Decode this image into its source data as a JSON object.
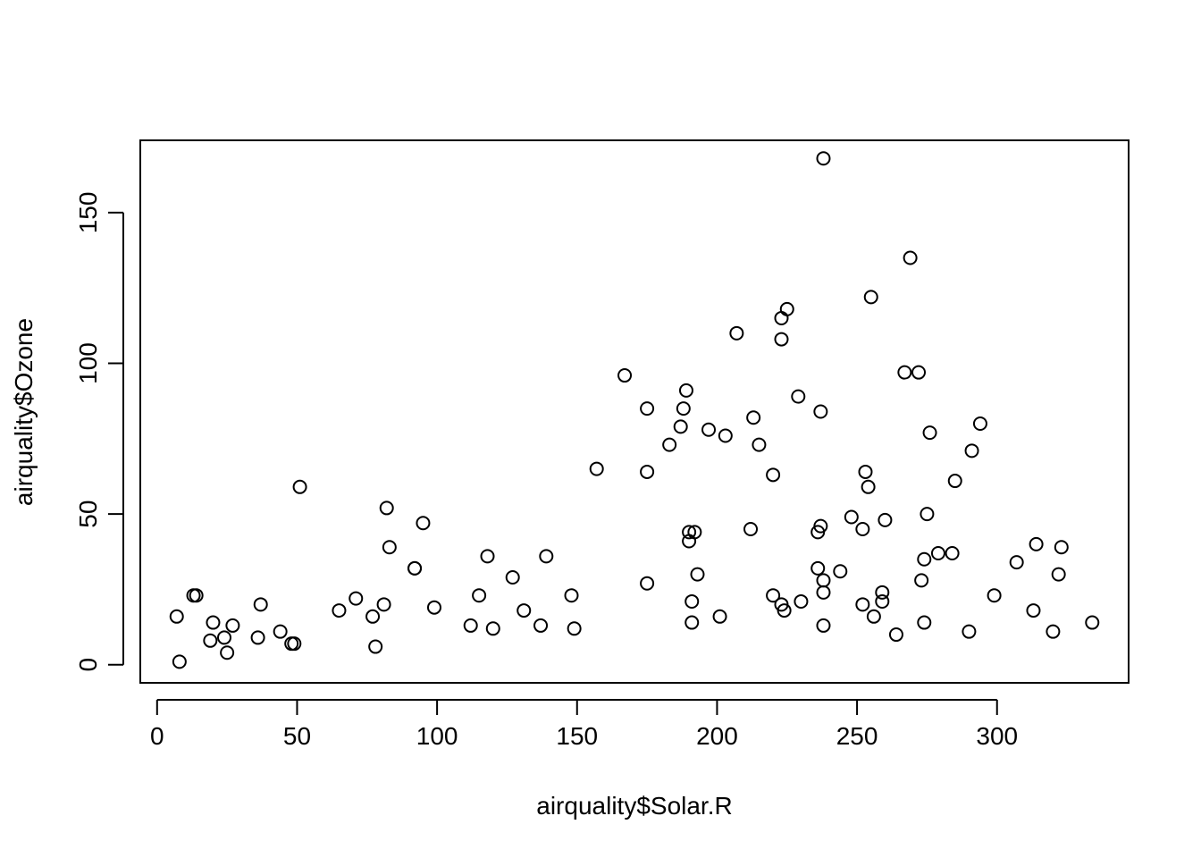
{
  "chart_data": {
    "type": "scatter",
    "title": "",
    "xlabel": "airquality$Solar.R",
    "ylabel": "airquality$Ozone",
    "xlim": [
      -6,
      347
    ],
    "ylim": [
      -6,
      174
    ],
    "x_ticks": [
      0,
      50,
      100,
      150,
      200,
      250,
      300
    ],
    "y_ticks": [
      0,
      50,
      100,
      150
    ],
    "grid": false,
    "legend": "none",
    "marker": "open-circle",
    "points": [
      [
        7,
        16
      ],
      [
        8,
        1
      ],
      [
        13,
        23
      ],
      [
        14,
        23
      ],
      [
        19,
        8
      ],
      [
        20,
        14
      ],
      [
        24,
        9
      ],
      [
        25,
        4
      ],
      [
        27,
        13
      ],
      [
        36,
        9
      ],
      [
        37,
        20
      ],
      [
        44,
        11
      ],
      [
        48,
        7
      ],
      [
        49,
        7
      ],
      [
        51,
        59
      ],
      [
        65,
        18
      ],
      [
        71,
        22
      ],
      [
        77,
        16
      ],
      [
        78,
        6
      ],
      [
        81,
        20
      ],
      [
        82,
        52
      ],
      [
        83,
        39
      ],
      [
        92,
        32
      ],
      [
        92,
        32
      ],
      [
        95,
        47
      ],
      [
        99,
        19
      ],
      [
        112,
        13
      ],
      [
        115,
        23
      ],
      [
        118,
        36
      ],
      [
        120,
        12
      ],
      [
        127,
        29
      ],
      [
        131,
        18
      ],
      [
        137,
        13
      ],
      [
        139,
        36
      ],
      [
        148,
        23
      ],
      [
        149,
        12
      ],
      [
        157,
        65
      ],
      [
        167,
        96
      ],
      [
        175,
        85
      ],
      [
        175,
        64
      ],
      [
        175,
        27
      ],
      [
        183,
        73
      ],
      [
        187,
        79
      ],
      [
        188,
        85
      ],
      [
        189,
        91
      ],
      [
        190,
        44
      ],
      [
        190,
        41
      ],
      [
        191,
        21
      ],
      [
        191,
        14
      ],
      [
        192,
        44
      ],
      [
        193,
        30
      ],
      [
        197,
        78
      ],
      [
        201,
        16
      ],
      [
        203,
        76
      ],
      [
        207,
        110
      ],
      [
        212,
        45
      ],
      [
        213,
        82
      ],
      [
        215,
        73
      ],
      [
        220,
        63
      ],
      [
        220,
        23
      ],
      [
        223,
        115
      ],
      [
        223,
        108
      ],
      [
        223,
        20
      ],
      [
        224,
        18
      ],
      [
        225,
        118
      ],
      [
        229,
        89
      ],
      [
        230,
        21
      ],
      [
        236,
        44
      ],
      [
        236,
        32
      ],
      [
        237,
        84
      ],
      [
        237,
        46
      ],
      [
        238,
        168
      ],
      [
        238,
        28
      ],
      [
        238,
        24
      ],
      [
        238,
        13
      ],
      [
        244,
        31
      ],
      [
        248,
        49
      ],
      [
        252,
        45
      ],
      [
        252,
        20
      ],
      [
        253,
        64
      ],
      [
        254,
        59
      ],
      [
        255,
        122
      ],
      [
        256,
        16
      ],
      [
        259,
        24
      ],
      [
        259,
        21
      ],
      [
        260,
        48
      ],
      [
        264,
        10
      ],
      [
        267,
        97
      ],
      [
        269,
        135
      ],
      [
        272,
        97
      ],
      [
        273,
        28
      ],
      [
        274,
        35
      ],
      [
        274,
        14
      ],
      [
        275,
        50
      ],
      [
        276,
        77
      ],
      [
        279,
        37
      ],
      [
        284,
        37
      ],
      [
        285,
        61
      ],
      [
        290,
        11
      ],
      [
        291,
        71
      ],
      [
        294,
        80
      ],
      [
        299,
        23
      ],
      [
        307,
        34
      ],
      [
        313,
        18
      ],
      [
        314,
        40
      ],
      [
        320,
        11
      ],
      [
        322,
        30
      ],
      [
        323,
        39
      ],
      [
        334,
        14
      ]
    ]
  }
}
